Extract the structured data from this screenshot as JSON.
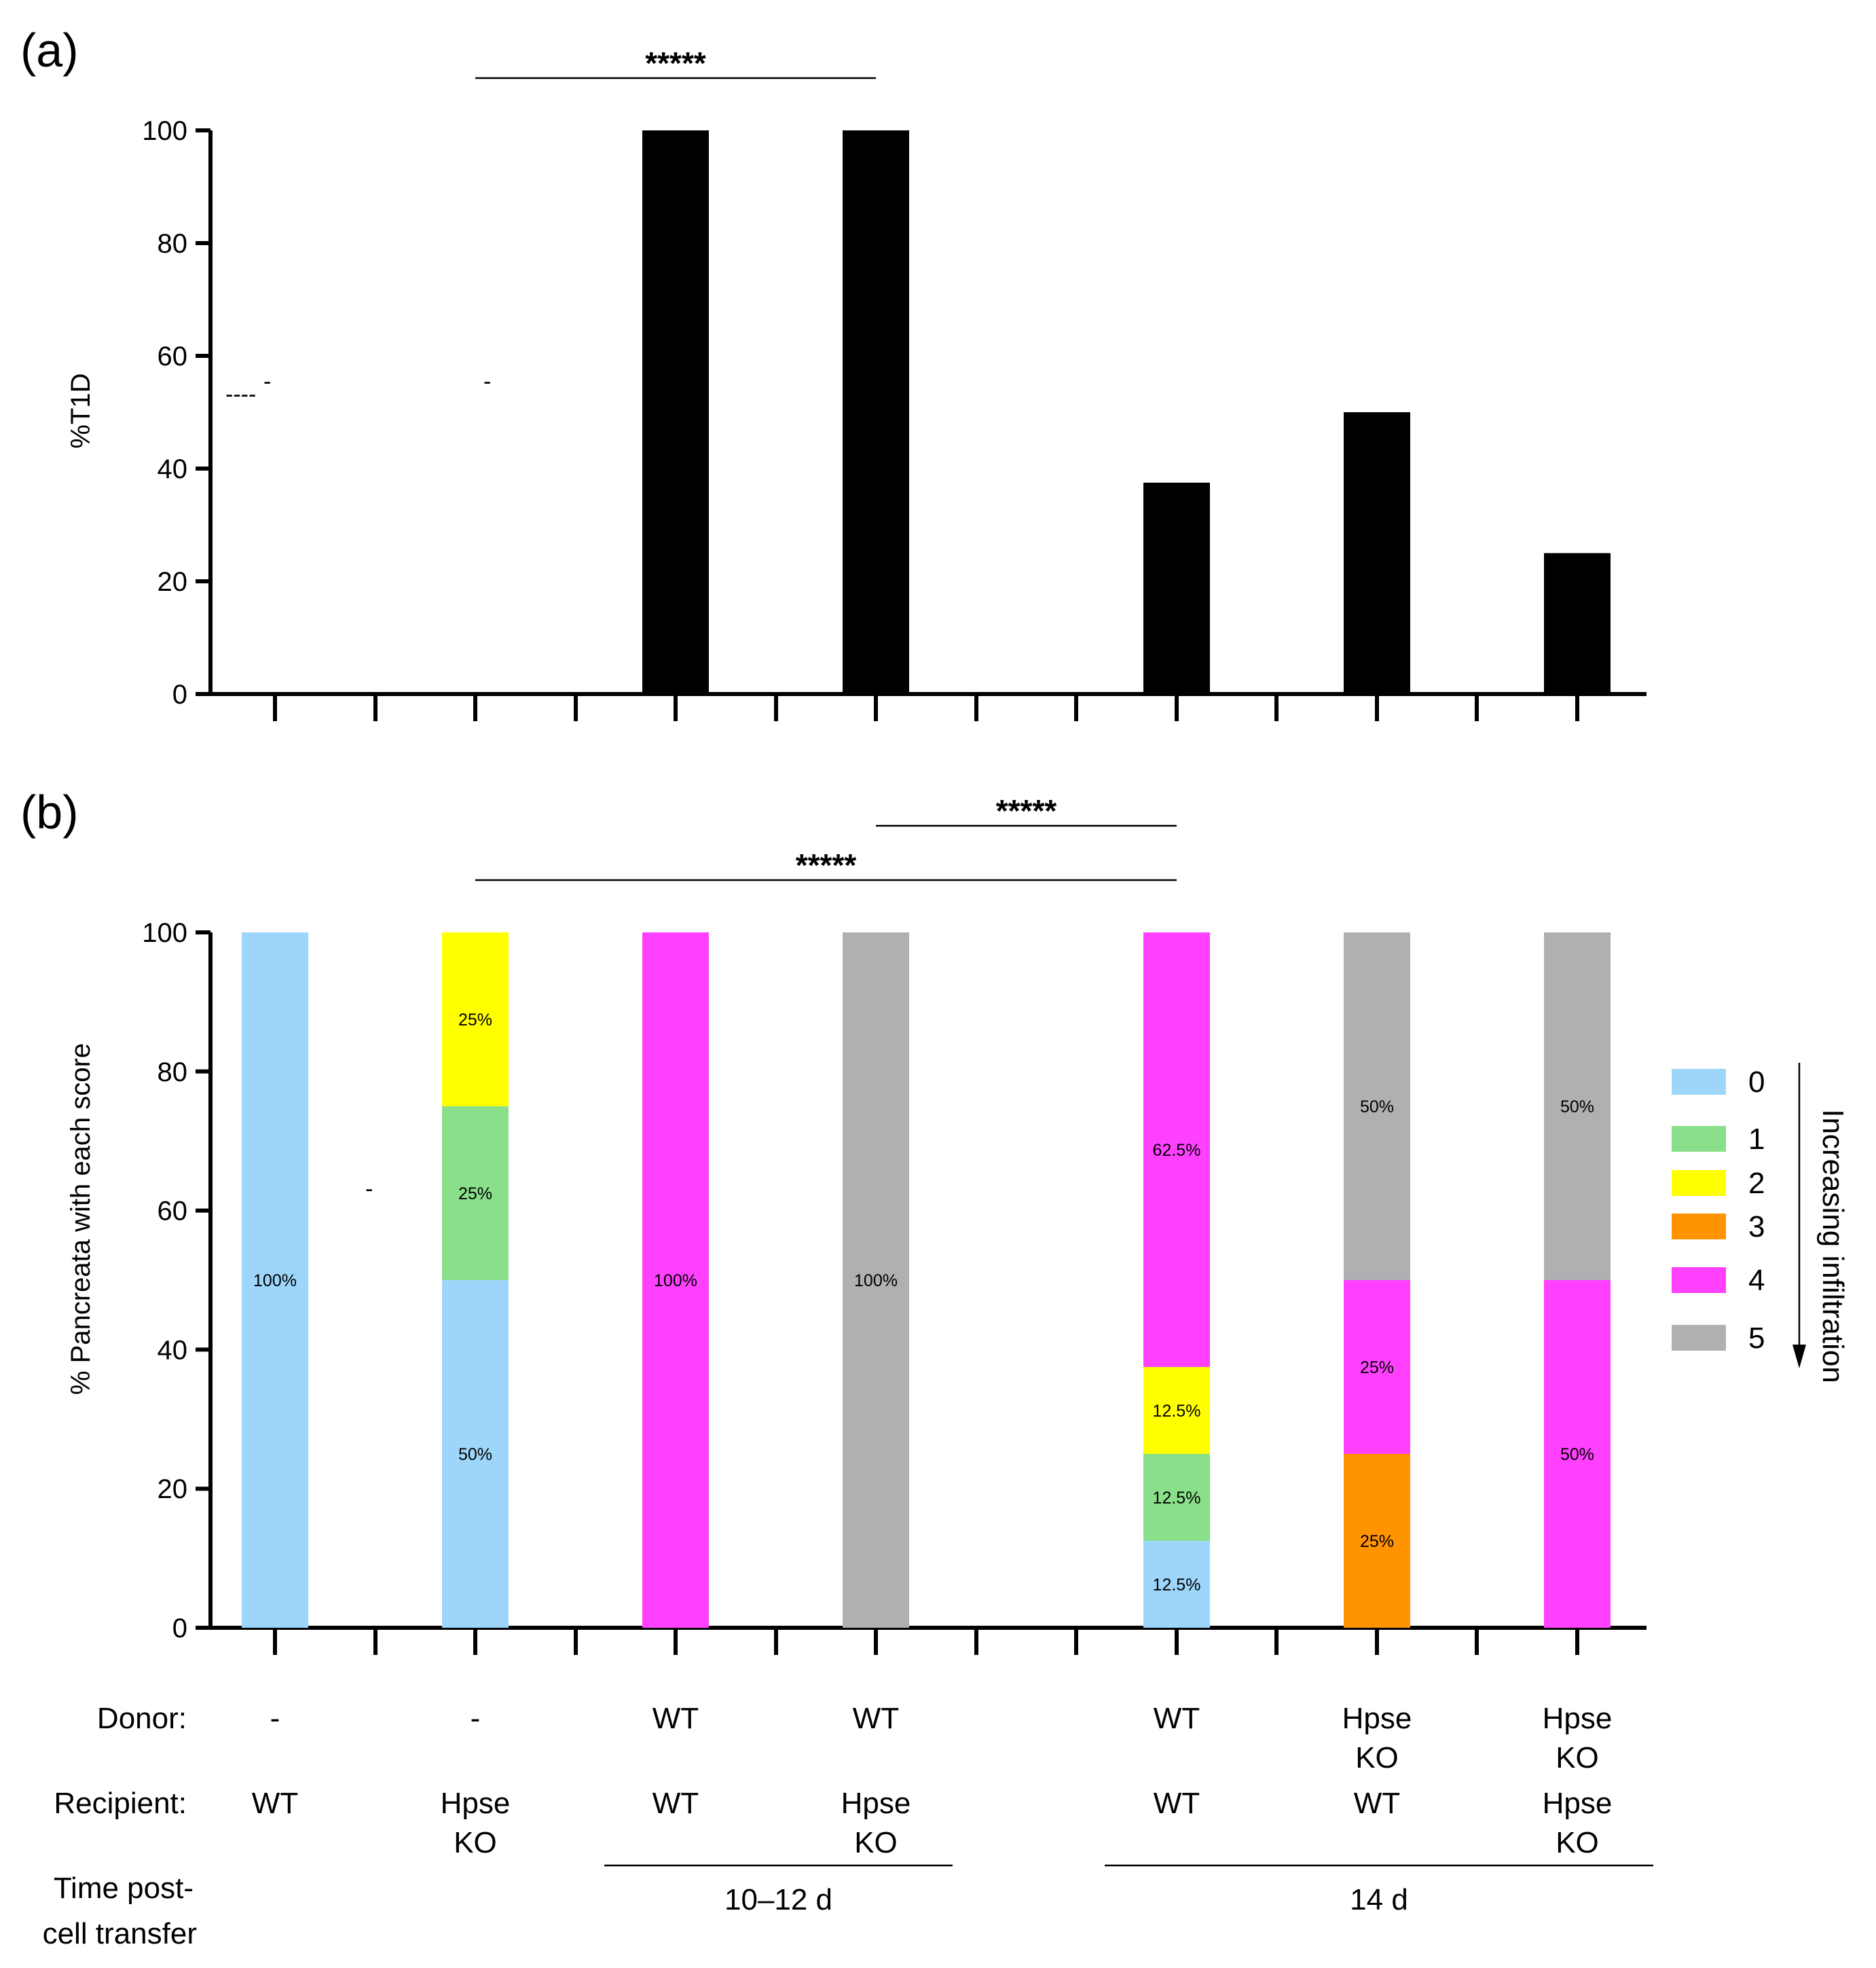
{
  "panels": {
    "a": {
      "label": "(a)",
      "dash_marks": [
        "----",
        "-"
      ]
    },
    "b": {
      "label": "(b)",
      "dash_mark": "-"
    }
  },
  "chart_data": [
    {
      "type": "bar",
      "panel": "(a)",
      "ylabel": "%T1D",
      "ylim": [
        0,
        100
      ],
      "yticks": [
        0,
        20,
        40,
        60,
        80,
        100
      ],
      "categories": [
        "WT / -",
        "Hpse KO / -",
        "WT / WT",
        "Hpse KO / WT",
        "WT / WT (14 d)",
        "WT / Hpse KO",
        "Hpse KO / Hpse KO"
      ],
      "values": [
        0,
        0,
        100,
        100,
        37.5,
        50,
        25
      ],
      "significance": [
        {
          "from": 1,
          "to": 3,
          "label": "*****"
        }
      ]
    },
    {
      "type": "bar",
      "stacked": true,
      "panel": "(b)",
      "ylabel": "% Pancreata with each score",
      "ylim": [
        0,
        100
      ],
      "yticks": [
        0,
        20,
        40,
        60,
        80,
        100
      ],
      "categories": [
        "WT / -",
        "Hpse KO / -",
        "WT / WT",
        "Hpse KO / WT",
        "WT / WT (14 d)",
        "WT / Hpse KO",
        "Hpse KO / Hpse KO"
      ],
      "score_colors": {
        "0": "#9dd6fa",
        "1": "#8ae08a",
        "2": "#ffff00",
        "3": "#ff9300",
        "4": "#ff40ff",
        "5": "#b0b0b2"
      },
      "stacks": [
        [
          {
            "score": "0",
            "value": 100,
            "label": "100%"
          }
        ],
        [
          {
            "score": "0",
            "value": 50,
            "label": "50%"
          },
          {
            "score": "1",
            "value": 25,
            "label": "25%"
          },
          {
            "score": "2",
            "value": 25,
            "label": "25%"
          }
        ],
        [
          {
            "score": "4",
            "value": 100,
            "label": "100%"
          }
        ],
        [
          {
            "score": "5",
            "value": 100,
            "label": "100%"
          }
        ],
        [
          {
            "score": "0",
            "value": 12.5,
            "label": "12.5%"
          },
          {
            "score": "1",
            "value": 12.5,
            "label": "12.5%"
          },
          {
            "score": "2",
            "value": 12.5,
            "label": "12.5%"
          },
          {
            "score": "4",
            "value": 62.5,
            "label": "62.5%"
          }
        ],
        [
          {
            "score": "3",
            "value": 25,
            "label": "25%"
          },
          {
            "score": "4",
            "value": 25,
            "label": "25%"
          },
          {
            "score": "5",
            "value": 50,
            "label": "50%"
          }
        ],
        [
          {
            "score": "4",
            "value": 50,
            "label": "50%"
          },
          {
            "score": "5",
            "value": 50,
            "label": "50%"
          }
        ]
      ],
      "significance": [
        {
          "from": 3,
          "to": 4,
          "label": "*****"
        },
        {
          "from": 1,
          "to": 4,
          "label": "*****"
        }
      ],
      "legend": {
        "entries": [
          {
            "score": "0",
            "label": "0"
          },
          {
            "score": "1",
            "label": "1"
          },
          {
            "score": "2",
            "label": "2"
          },
          {
            "score": "3",
            "label": "3"
          },
          {
            "score": "4",
            "label": "4"
          },
          {
            "score": "5",
            "label": "5"
          }
        ],
        "arrow_label": "Increasing infiltration",
        "placement": "right"
      }
    }
  ],
  "conditions": {
    "row_labels": {
      "donor": "Donor:",
      "recipient": "Recipient:",
      "time_line1": "Time post-",
      "time_line2": "cell transfer"
    },
    "groups": [
      {
        "donor": [
          "-"
        ],
        "recipient": [
          "WT"
        ]
      },
      {
        "donor": [
          "-"
        ],
        "recipient": [
          "Hpse",
          "KO"
        ]
      },
      {
        "donor": [
          "WT"
        ],
        "recipient": [
          "WT"
        ]
      },
      {
        "donor": [
          "WT"
        ],
        "recipient": [
          "Hpse",
          "KO"
        ]
      },
      {
        "donor": [
          "WT"
        ],
        "recipient": [
          "WT"
        ]
      },
      {
        "donor": [
          "Hpse",
          "KO"
        ],
        "recipient": [
          "WT"
        ]
      },
      {
        "donor": [
          "Hpse",
          "KO"
        ],
        "recipient": [
          "Hpse",
          "KO"
        ]
      }
    ],
    "time_groups": [
      {
        "label": "10–12 d",
        "from": 2,
        "to": 3
      },
      {
        "label": "14 d",
        "from": 4,
        "to": 6
      }
    ]
  }
}
